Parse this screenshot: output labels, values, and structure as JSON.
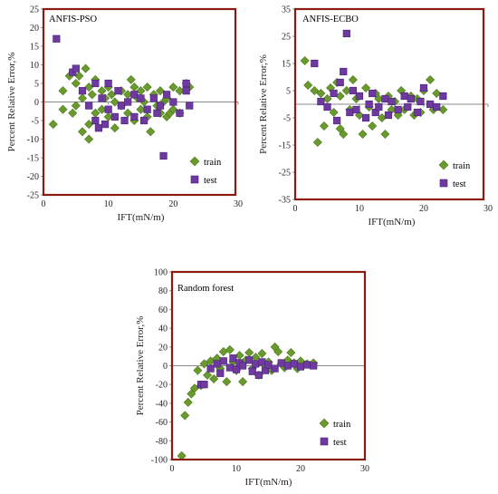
{
  "chart_data": [
    {
      "type": "scatter",
      "title": "ANFIS-PSO",
      "xlabel": "IFT(mN/m)",
      "ylabel": "Percent Relative Error,%",
      "xlim": [
        0,
        30
      ],
      "ylim": [
        -25,
        25
      ],
      "xticks": [
        "0",
        "10",
        "20",
        "30"
      ],
      "yticks": [
        "-25",
        "-20",
        "-15",
        "-10",
        "-5",
        "0",
        "5",
        "10",
        "15",
        "20",
        "25"
      ],
      "series": [
        {
          "name": "train",
          "marker": "diamond",
          "color": "#6a9a2e",
          "points": [
            [
              1.5,
              -6
            ],
            [
              3,
              3
            ],
            [
              3,
              -2
            ],
            [
              4,
              7
            ],
            [
              4.5,
              -3
            ],
            [
              5,
              5
            ],
            [
              5,
              -1
            ],
            [
              5.5,
              7
            ],
            [
              6,
              -8
            ],
            [
              6,
              1
            ],
            [
              6.5,
              9
            ],
            [
              7,
              4
            ],
            [
              7,
              -6
            ],
            [
              7,
              -10
            ],
            [
              7.5,
              2
            ],
            [
              8,
              6
            ],
            [
              8,
              -3
            ],
            [
              9,
              3
            ],
            [
              9,
              -2
            ],
            [
              9.5,
              1
            ],
            [
              10,
              4
            ],
            [
              10,
              -4
            ],
            [
              10.5,
              2
            ],
            [
              11,
              0
            ],
            [
              11,
              -7
            ],
            [
              12,
              3
            ],
            [
              12,
              -1
            ],
            [
              13,
              2
            ],
            [
              13,
              -3
            ],
            [
              13.5,
              6
            ],
            [
              14,
              4
            ],
            [
              14,
              -5
            ],
            [
              14.5,
              1
            ],
            [
              15,
              3
            ],
            [
              15,
              -2
            ],
            [
              15.5,
              0
            ],
            [
              16,
              -4
            ],
            [
              16,
              4
            ],
            [
              16.5,
              -8
            ],
            [
              17,
              2
            ],
            [
              17.5,
              -1
            ],
            [
              18,
              3
            ],
            [
              18,
              -3
            ],
            [
              18.5,
              0
            ],
            [
              19,
              1
            ],
            [
              19,
              -4
            ],
            [
              19.5,
              -3
            ],
            [
              20,
              4
            ],
            [
              20,
              -2
            ],
            [
              21,
              3
            ],
            [
              21,
              -3
            ],
            [
              22,
              5
            ],
            [
              22.5,
              4
            ]
          ]
        },
        {
          "name": "test",
          "marker": "square",
          "color": "#6e3aa0",
          "points": [
            [
              2,
              17
            ],
            [
              4.5,
              8
            ],
            [
              5,
              9
            ],
            [
              6,
              3
            ],
            [
              7,
              -1
            ],
            [
              8,
              5
            ],
            [
              8,
              -5
            ],
            [
              8.5,
              -7
            ],
            [
              9,
              1
            ],
            [
              9.5,
              -6
            ],
            [
              10,
              5
            ],
            [
              10,
              -2
            ],
            [
              11,
              -4
            ],
            [
              11.5,
              3
            ],
            [
              12,
              -1
            ],
            [
              12.5,
              -5
            ],
            [
              13,
              0
            ],
            [
              14,
              2
            ],
            [
              14,
              -4
            ],
            [
              15,
              1
            ],
            [
              15.5,
              -5
            ],
            [
              16,
              -2
            ],
            [
              17,
              1
            ],
            [
              17.5,
              -3
            ],
            [
              18,
              -1
            ],
            [
              18.5,
              -14.5
            ],
            [
              19,
              2
            ],
            [
              20,
              0
            ],
            [
              21,
              -3
            ],
            [
              22,
              3
            ],
            [
              22,
              5
            ],
            [
              22.5,
              -1
            ]
          ]
        }
      ],
      "legend": {
        "position": "bottom-right",
        "entries": [
          "train",
          "test"
        ]
      }
    },
    {
      "type": "scatter",
      "title": "ANFIS-ECBO",
      "xlabel": "IFT(mN/m)",
      "ylabel": "Percent Relative Error,%",
      "xlim": [
        0,
        30
      ],
      "ylim": [
        -35,
        35
      ],
      "xticks": [
        "0",
        "10",
        "20",
        "30"
      ],
      "yticks": [
        "-35",
        "-25",
        "-15",
        "-5",
        "5",
        "15",
        "25",
        "35"
      ],
      "series": [
        {
          "name": "train",
          "marker": "diamond",
          "color": "#6a9a2e",
          "points": [
            [
              1.5,
              16
            ],
            [
              2,
              7
            ],
            [
              3,
              5
            ],
            [
              3.5,
              -14
            ],
            [
              4,
              4
            ],
            [
              4.5,
              -8
            ],
            [
              5,
              2
            ],
            [
              5.5,
              6
            ],
            [
              6,
              -3
            ],
            [
              6.5,
              8
            ],
            [
              7,
              -9
            ],
            [
              7,
              3
            ],
            [
              7.5,
              -11
            ],
            [
              8,
              5
            ],
            [
              8.5,
              -2
            ],
            [
              9,
              9
            ],
            [
              9.5,
              2
            ],
            [
              10,
              -4
            ],
            [
              10.5,
              -11
            ],
            [
              11,
              6
            ],
            [
              11.5,
              -1
            ],
            [
              12,
              -8
            ],
            [
              12.5,
              4
            ],
            [
              13,
              2
            ],
            [
              13.5,
              -5
            ],
            [
              14,
              -11
            ],
            [
              14.5,
              3
            ],
            [
              15,
              -2
            ],
            [
              15.5,
              1
            ],
            [
              16,
              -4
            ],
            [
              16.5,
              5
            ],
            [
              17,
              -2
            ],
            [
              18,
              3
            ],
            [
              18.5,
              -4
            ],
            [
              19,
              2
            ],
            [
              19.5,
              -3
            ],
            [
              20,
              5
            ],
            [
              21,
              9
            ],
            [
              21.5,
              -2
            ],
            [
              22,
              4
            ],
            [
              23,
              -2
            ]
          ]
        },
        {
          "name": "test",
          "marker": "square",
          "color": "#6e3aa0",
          "points": [
            [
              3,
              15
            ],
            [
              4,
              1
            ],
            [
              5,
              -1
            ],
            [
              6,
              4
            ],
            [
              6.5,
              -6
            ],
            [
              7,
              8
            ],
            [
              7.5,
              12
            ],
            [
              8,
              26
            ],
            [
              8.5,
              -3
            ],
            [
              9,
              5
            ],
            [
              9.5,
              -2
            ],
            [
              10,
              3
            ],
            [
              11,
              -5
            ],
            [
              11.5,
              0
            ],
            [
              12,
              4
            ],
            [
              12.5,
              -3
            ],
            [
              13,
              -1
            ],
            [
              14,
              2
            ],
            [
              14.5,
              -4
            ],
            [
              15,
              1
            ],
            [
              16,
              -2
            ],
            [
              17,
              3
            ],
            [
              17.5,
              -1
            ],
            [
              18,
              2
            ],
            [
              19,
              -3
            ],
            [
              19.5,
              1
            ],
            [
              20,
              6
            ],
            [
              21,
              0
            ],
            [
              22,
              -1
            ],
            [
              23,
              3
            ]
          ]
        }
      ],
      "legend": {
        "position": "bottom-right",
        "entries": [
          "train",
          "test"
        ]
      }
    },
    {
      "type": "scatter",
      "title": "Random forest",
      "xlabel": "IFT(mN/m)",
      "ylabel": "Percent Relative Error,%",
      "xlim": [
        0,
        30
      ],
      "ylim": [
        -100,
        100
      ],
      "xticks": [
        "0",
        "10",
        "20",
        "30"
      ],
      "yticks": [
        "-100",
        "-80",
        "-60",
        "-40",
        "-20",
        "0",
        "20",
        "40",
        "60",
        "80",
        "100"
      ],
      "series": [
        {
          "name": "train",
          "marker": "diamond",
          "color": "#6a9a2e",
          "points": [
            [
              1.5,
              -96
            ],
            [
              2,
              -53
            ],
            [
              2.5,
              -39
            ],
            [
              3,
              -30
            ],
            [
              3.5,
              -24
            ],
            [
              4,
              -5
            ],
            [
              4.5,
              -21
            ],
            [
              5,
              2
            ],
            [
              5.5,
              -10
            ],
            [
              6,
              5
            ],
            [
              6.5,
              -14
            ],
            [
              7,
              8
            ],
            [
              7.5,
              -3
            ],
            [
              8,
              15
            ],
            [
              8.5,
              -17
            ],
            [
              9,
              17
            ],
            [
              9.5,
              4
            ],
            [
              10,
              -5
            ],
            [
              10.5,
              11
            ],
            [
              11,
              -17
            ],
            [
              11.5,
              6
            ],
            [
              12,
              14
            ],
            [
              12.5,
              -3
            ],
            [
              13,
              9
            ],
            [
              13.5,
              -10
            ],
            [
              14,
              13
            ],
            [
              14.5,
              0
            ],
            [
              15,
              4
            ],
            [
              15.5,
              -5
            ],
            [
              16,
              20
            ],
            [
              16.5,
              15
            ],
            [
              17,
              2
            ],
            [
              17.5,
              -2
            ],
            [
              18,
              6
            ],
            [
              18.5,
              14
            ],
            [
              19,
              3
            ],
            [
              19.5,
              -3
            ],
            [
              20,
              5
            ],
            [
              21,
              2
            ],
            [
              22,
              3
            ]
          ]
        },
        {
          "name": "test",
          "marker": "square",
          "color": "#6e3aa0",
          "points": [
            [
              4.5,
              -20
            ],
            [
              5,
              -20
            ],
            [
              6,
              -3
            ],
            [
              7,
              2
            ],
            [
              7.5,
              -8
            ],
            [
              8,
              5
            ],
            [
              9,
              -2
            ],
            [
              9.5,
              8
            ],
            [
              10,
              -4
            ],
            [
              10.5,
              3
            ],
            [
              11,
              0
            ],
            [
              12,
              6
            ],
            [
              12.5,
              -6
            ],
            [
              13,
              2
            ],
            [
              13.5,
              -10
            ],
            [
              14,
              4
            ],
            [
              14.5,
              -5
            ],
            [
              15,
              1
            ],
            [
              16,
              -3
            ],
            [
              17,
              3
            ],
            [
              18,
              0
            ],
            [
              19,
              2
            ],
            [
              20,
              -1
            ],
            [
              21,
              1
            ],
            [
              22,
              0
            ]
          ]
        }
      ],
      "legend": {
        "position": "bottom-right",
        "entries": [
          "train",
          "test"
        ]
      }
    }
  ]
}
